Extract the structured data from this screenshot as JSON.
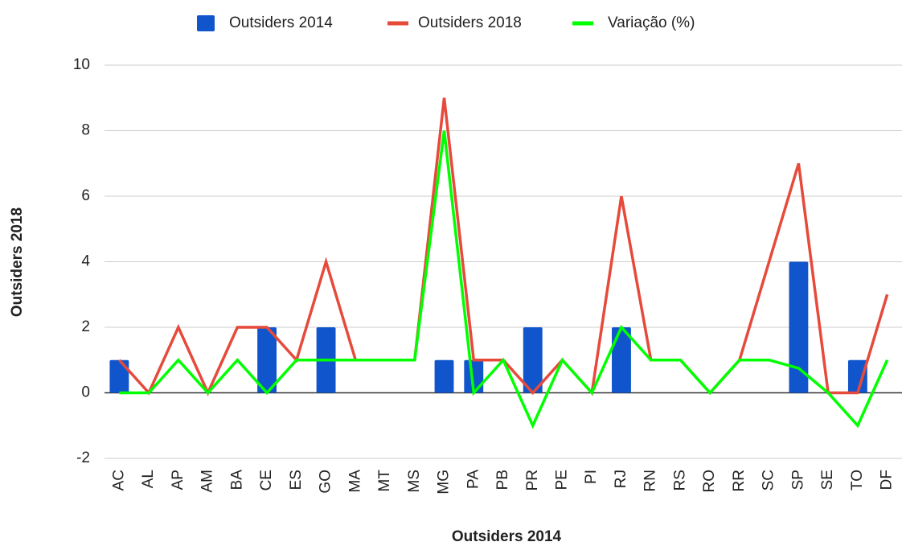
{
  "chart_data": {
    "type": "bar-line",
    "x_label": "Outsiders 2014",
    "y_label": "Outsiders 2018",
    "categories": [
      "AC",
      "AL",
      "AP",
      "AM",
      "BA",
      "CE",
      "ES",
      "GO",
      "MA",
      "MT",
      "MS",
      "MG",
      "PA",
      "PB",
      "PR",
      "PE",
      "PI",
      "RJ",
      "RN",
      "RS",
      "RO",
      "RR",
      "SC",
      "SP",
      "SE",
      "TO",
      "DF"
    ],
    "series": [
      {
        "name": "Outsiders 2014",
        "type": "bar",
        "color": "#1155cc",
        "values": [
          1,
          0,
          0,
          0,
          0,
          2,
          0,
          2,
          0,
          0,
          0,
          1,
          1,
          0,
          2,
          0,
          0,
          2,
          0,
          0,
          0,
          0,
          0,
          4,
          0,
          1,
          0
        ]
      },
      {
        "name": "Outsiders 2018",
        "type": "line",
        "color": "#e64a3b",
        "values": [
          1,
          0,
          2,
          0,
          2,
          2,
          1,
          4,
          1,
          1,
          1,
          9,
          1,
          1,
          0,
          1,
          0,
          6,
          1,
          1,
          0,
          1,
          4,
          7,
          0,
          0,
          3
        ]
      },
      {
        "name": "Variação  (%)",
        "type": "line",
        "color": "#00ff00",
        "values": [
          0,
          0,
          1,
          0,
          1,
          0,
          1,
          1,
          1,
          1,
          1,
          8,
          0,
          1,
          -1,
          1,
          0,
          2,
          1,
          1,
          0,
          1,
          1,
          0.75,
          0,
          -1,
          1
        ]
      }
    ],
    "ylim": [
      -2,
      10
    ],
    "yticks": [
      -2,
      0,
      2,
      4,
      6,
      8,
      10
    ],
    "grid": true,
    "legend": "top"
  }
}
